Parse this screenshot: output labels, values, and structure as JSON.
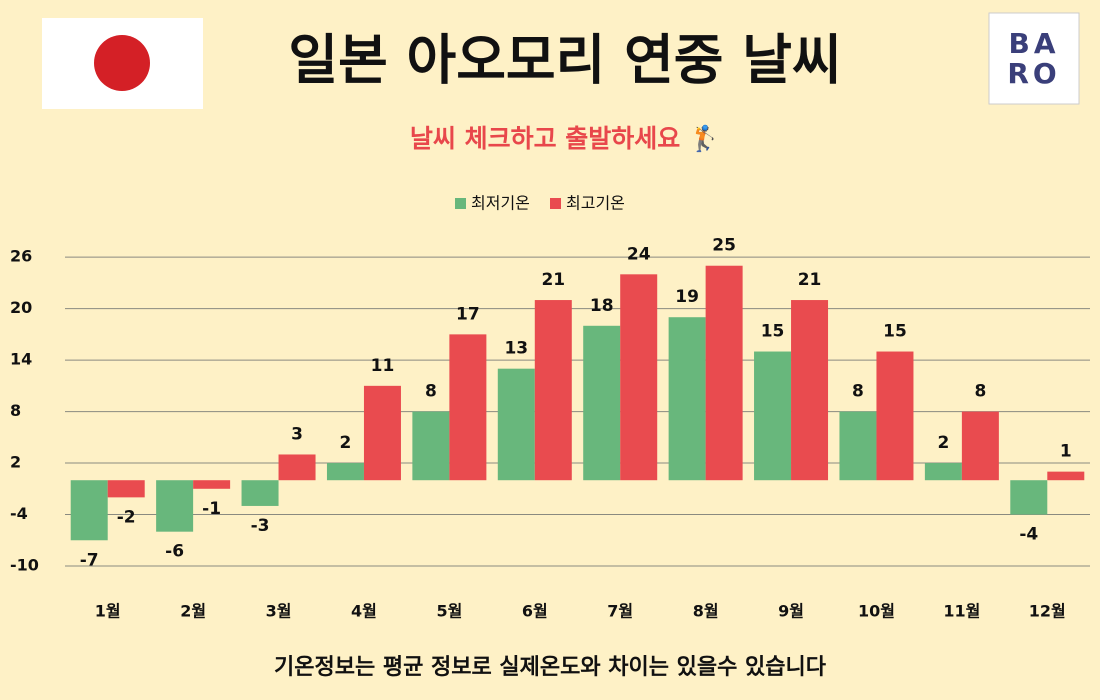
{
  "chart_data": {
    "type": "bar",
    "title": "일본 아오모리 연중 날씨",
    "subtitle": "날씨 체크하고 출발하세요 🏌️",
    "footer": "기온정보는 평균 정보로 실제온도와 차이는 있을수 있습니다",
    "logo": [
      "BA",
      "RO"
    ],
    "categories": [
      "1월",
      "2월",
      "3월",
      "4월",
      "5월",
      "6월",
      "7월",
      "8월",
      "9월",
      "10월",
      "11월",
      "12월"
    ],
    "series": [
      {
        "name": "최저기온",
        "color": "#68b77c",
        "values": [
          -7,
          -6,
          -3,
          2,
          8,
          13,
          18,
          19,
          15,
          8,
          2,
          -4
        ]
      },
      {
        "name": "최고기온",
        "color": "#e94b4f",
        "values": [
          -2,
          -1,
          3,
          11,
          17,
          21,
          24,
          25,
          21,
          15,
          8,
          1
        ]
      }
    ],
    "ylim": [
      -10,
      28
    ],
    "yticks": [
      -10,
      -4,
      2,
      8,
      14,
      20,
      26
    ],
    "grid": true,
    "legend": "top"
  }
}
